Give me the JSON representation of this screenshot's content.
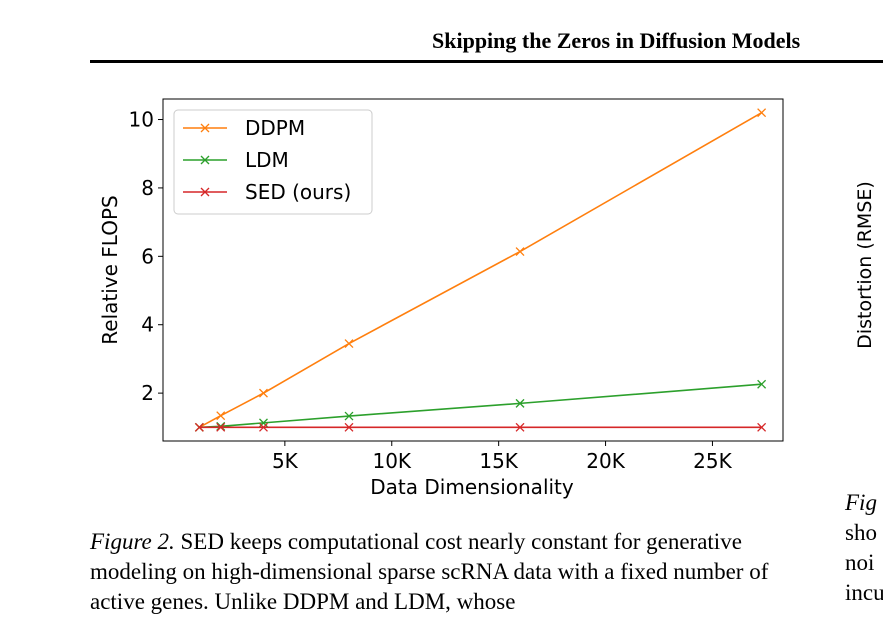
{
  "header": {
    "title": "Skipping the Zeros in Diffusion Models"
  },
  "chart_data": {
    "type": "line",
    "title": "",
    "xlabel": "Data Dimensionality",
    "ylabel": "Relative FLOPS",
    "xlim": [
      -700,
      28300
    ],
    "ylim": [
      0.6,
      10.6
    ],
    "x_ticks": [
      5000,
      10000,
      15000,
      20000,
      25000
    ],
    "x_tick_labels": [
      "5K",
      "10K",
      "15K",
      "20K",
      "25K"
    ],
    "y_ticks": [
      2,
      4,
      6,
      8,
      10
    ],
    "y_tick_labels": [
      "2",
      "4",
      "6",
      "8",
      "10"
    ],
    "grid": false,
    "legend_position": "top-left",
    "x": [
      1000,
      2000,
      4000,
      8000,
      16000,
      27300
    ],
    "series": [
      {
        "name": "DDPM",
        "color": "#ff7f0e",
        "values": [
          1.0,
          1.34,
          2.0,
          3.45,
          6.14,
          10.2
        ]
      },
      {
        "name": "LDM",
        "color": "#2ca02c",
        "values": [
          1.0,
          1.03,
          1.13,
          1.33,
          1.7,
          2.26
        ]
      },
      {
        "name": "SED (ours)",
        "color": "#d62728",
        "values": [
          1.0,
          1.0,
          1.0,
          1.0,
          1.0,
          1.0
        ]
      }
    ]
  },
  "right_panel": {
    "ylabel": "Distortion (RMSE)",
    "caption_start": "Fig",
    "lines": [
      "sho",
      "noi",
      "incu"
    ]
  },
  "caption": {
    "label": "Figure 2.",
    "text": " SED keeps computational cost nearly constant for generative modeling on high-dimensional sparse scRNA data with a fixed number of active genes. Unlike DDPM and LDM, whose"
  }
}
